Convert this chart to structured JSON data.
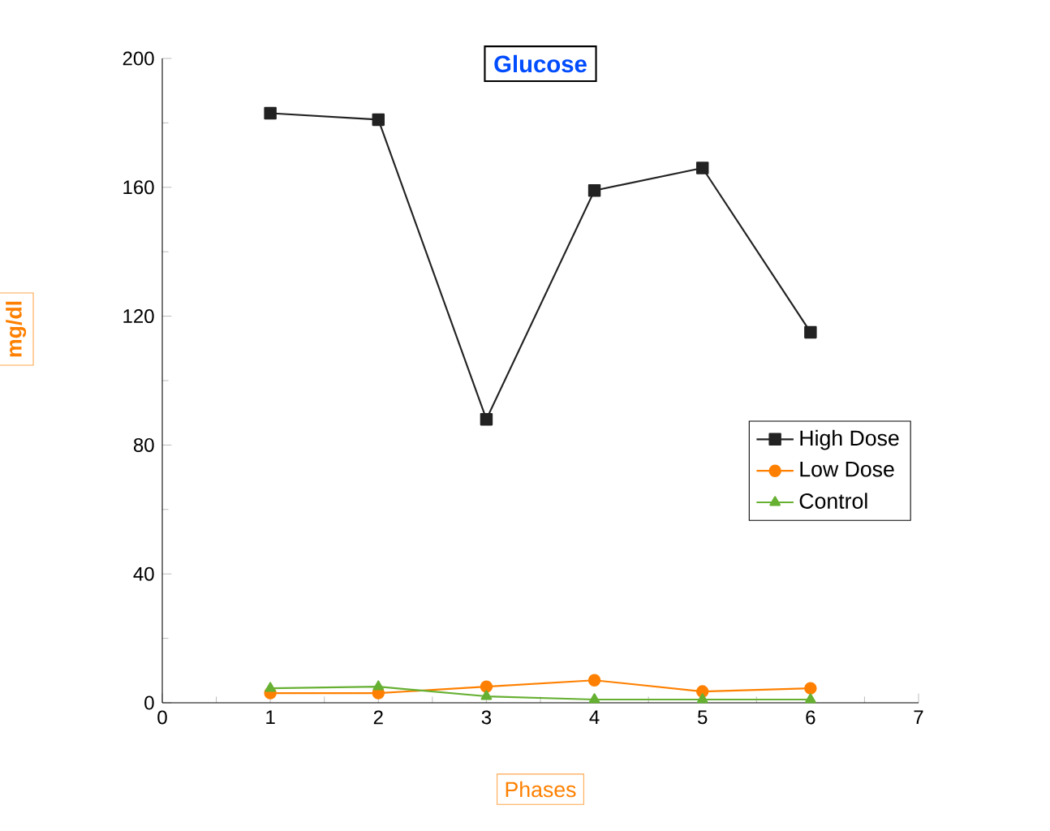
{
  "chart_data": {
    "type": "line",
    "title": "Glucose",
    "xlabel": "Phases",
    "ylabel": "mg/dl",
    "x": [
      1,
      2,
      3,
      4,
      5,
      6
    ],
    "series": [
      {
        "name": "High Dose",
        "color": "#222222",
        "marker": "square",
        "values": [
          183,
          181,
          88,
          159,
          166,
          115
        ]
      },
      {
        "name": "Low Dose",
        "color": "#ff8000",
        "marker": "circle",
        "values": [
          3,
          3,
          5,
          7,
          3.5,
          4.5
        ]
      },
      {
        "name": "Control",
        "color": "#66b032",
        "marker": "triangle",
        "values": [
          4.5,
          5,
          2,
          1,
          1,
          1
        ]
      }
    ],
    "xlim": [
      0,
      7
    ],
    "xticks": [
      0,
      1,
      2,
      3,
      4,
      5,
      6,
      7
    ],
    "ylim": [
      0,
      200
    ],
    "yticks": [
      0,
      40,
      80,
      120,
      160,
      200
    ],
    "grid": false,
    "legend": "right",
    "line_style": "solid"
  }
}
